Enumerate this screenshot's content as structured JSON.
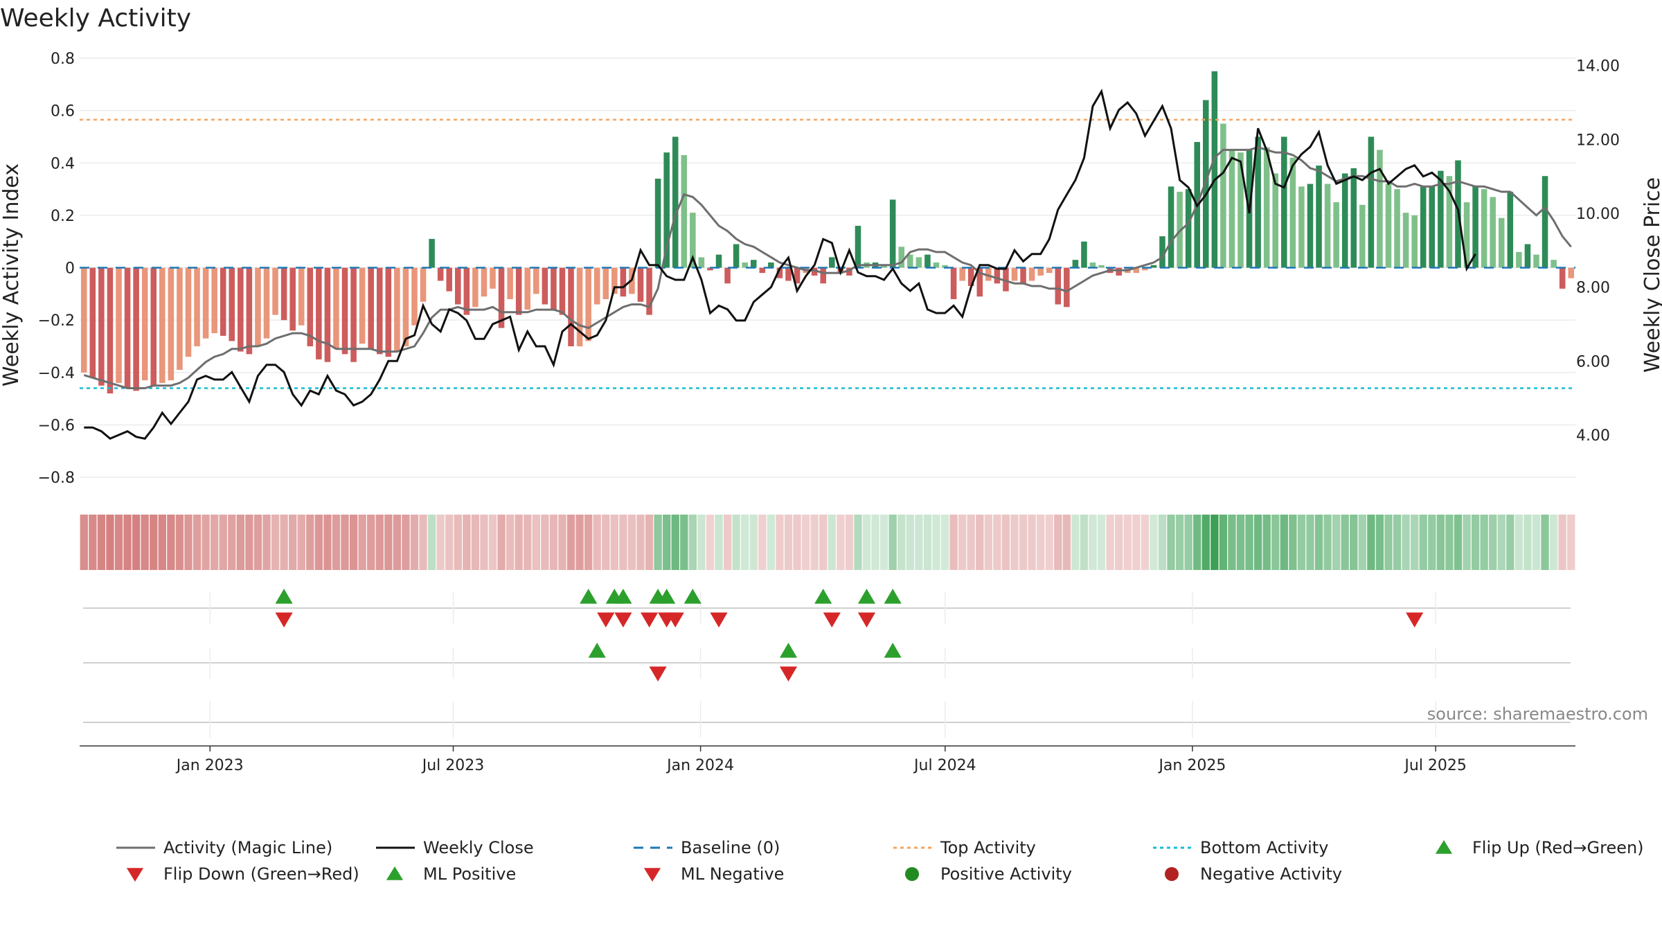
{
  "chart_data": {
    "type": "bar",
    "title": "Weekly Activity",
    "ylabel": "Weekly Activity Index",
    "y2label": "Weekly Close Price",
    "source": "source: sharemaestro.com",
    "ylim": [
      -0.85,
      0.8
    ],
    "y2lim": [
      2.5,
      14.2
    ],
    "yticks": [
      0.8,
      0.6,
      0.4,
      0.2,
      0,
      -0.2,
      -0.4,
      -0.6,
      -0.8
    ],
    "ytick_labels": [
      "0.8",
      "0.6",
      "0.4",
      "0.2",
      "0",
      "−0.2",
      "−0.4",
      "−0.6",
      "−0.8"
    ],
    "y2ticks": [
      14,
      12,
      10,
      8,
      6,
      4
    ],
    "y2tick_labels": [
      "14.00",
      "12.00",
      "10.00",
      "8.00",
      "6.00",
      "4.00"
    ],
    "x_start": "2022-09-26",
    "x_end": "2025-10-13",
    "xticks": [
      {
        "date": "2023-01-01",
        "label": "Jan 2023"
      },
      {
        "date": "2023-07-01",
        "label": "Jul 2023"
      },
      {
        "date": "2024-01-01",
        "label": "Jan 2024"
      },
      {
        "date": "2024-07-01",
        "label": "Jul 2024"
      },
      {
        "date": "2025-01-01",
        "label": "Jan 2025"
      },
      {
        "date": "2025-07-01",
        "label": "Jul 2025"
      }
    ],
    "top_activity": 0.565,
    "bottom_activity": -0.46,
    "activity": [
      -0.4,
      -0.42,
      -0.45,
      -0.48,
      -0.44,
      -0.46,
      -0.47,
      -0.43,
      -0.45,
      -0.44,
      -0.43,
      -0.39,
      -0.34,
      -0.3,
      -0.27,
      -0.25,
      -0.26,
      -0.28,
      -0.32,
      -0.33,
      -0.3,
      -0.27,
      -0.18,
      -0.2,
      -0.24,
      -0.22,
      -0.3,
      -0.35,
      -0.36,
      -0.31,
      -0.33,
      -0.36,
      -0.29,
      -0.31,
      -0.33,
      -0.34,
      -0.32,
      -0.3,
      -0.22,
      -0.13,
      0.11,
      -0.05,
      -0.09,
      -0.14,
      -0.18,
      -0.15,
      -0.11,
      -0.08,
      -0.23,
      -0.12,
      -0.18,
      -0.16,
      -0.1,
      -0.14,
      -0.16,
      -0.18,
      -0.3,
      -0.3,
      -0.28,
      -0.14,
      -0.12,
      -0.1,
      -0.11,
      -0.1,
      -0.13,
      -0.18,
      0.34,
      0.44,
      0.5,
      0.43,
      0.21,
      0.04,
      -0.01,
      0.05,
      -0.06,
      0.09,
      0.02,
      0.03,
      -0.02,
      0.02,
      -0.04,
      -0.05,
      -0.06,
      -0.02,
      -0.03,
      -0.06,
      0.04,
      -0.02,
      -0.03,
      0.16,
      0.02,
      0.02,
      0.01,
      0.26,
      0.08,
      0.05,
      0.04,
      0.05,
      0.02,
      0.01,
      -0.12,
      -0.05,
      -0.07,
      -0.11,
      -0.05,
      -0.06,
      -0.09,
      -0.05,
      -0.06,
      -0.05,
      -0.03,
      -0.02,
      -0.14,
      -0.15,
      0.03,
      0.1,
      0.02,
      0.01,
      -0.02,
      -0.03,
      -0.02,
      -0.02,
      -0.01,
      0.01,
      0.12,
      0.31,
      0.29,
      0.3,
      0.48,
      0.64,
      0.75,
      0.55,
      0.45,
      0.44,
      0.45,
      0.5,
      0.46,
      0.36,
      0.5,
      0.42,
      0.31,
      0.32,
      0.39,
      0.32,
      0.25,
      0.36,
      0.38,
      0.24,
      0.5,
      0.45,
      0.32,
      0.3,
      0.21,
      0.2,
      0.31,
      0.31,
      0.37,
      0.35,
      0.41,
      0.25,
      0.31,
      0.3,
      0.27,
      0.19,
      0.29,
      0.06,
      0.09,
      0.05,
      0.35,
      0.03,
      -0.08,
      -0.04
    ],
    "magic_line": [
      -0.41,
      -0.42,
      -0.43,
      -0.44,
      -0.45,
      -0.46,
      -0.46,
      -0.46,
      -0.45,
      -0.45,
      -0.45,
      -0.44,
      -0.42,
      -0.39,
      -0.36,
      -0.34,
      -0.33,
      -0.31,
      -0.31,
      -0.3,
      -0.3,
      -0.29,
      -0.27,
      -0.26,
      -0.25,
      -0.25,
      -0.26,
      -0.28,
      -0.29,
      -0.31,
      -0.31,
      -0.31,
      -0.31,
      -0.31,
      -0.32,
      -0.32,
      -0.32,
      -0.31,
      -0.3,
      -0.25,
      -0.19,
      -0.16,
      -0.16,
      -0.15,
      -0.16,
      -0.16,
      -0.16,
      -0.15,
      -0.17,
      -0.17,
      -0.17,
      -0.17,
      -0.16,
      -0.16,
      -0.16,
      -0.17,
      -0.2,
      -0.22,
      -0.23,
      -0.21,
      -0.19,
      -0.17,
      -0.15,
      -0.14,
      -0.14,
      -0.15,
      -0.08,
      0.08,
      0.2,
      0.28,
      0.27,
      0.24,
      0.2,
      0.16,
      0.14,
      0.11,
      0.09,
      0.08,
      0.06,
      0.04,
      0.02,
      0.01,
      0.0,
      -0.01,
      -0.01,
      -0.02,
      -0.02,
      -0.02,
      -0.01,
      0.01,
      0.01,
      0.01,
      0.01,
      0.01,
      0.02,
      0.06,
      0.07,
      0.07,
      0.06,
      0.06,
      0.04,
      0.02,
      0.01,
      -0.02,
      -0.03,
      -0.04,
      -0.05,
      -0.06,
      -0.06,
      -0.07,
      -0.07,
      -0.08,
      -0.08,
      -0.09,
      -0.07,
      -0.05,
      -0.03,
      -0.02,
      -0.01,
      -0.01,
      -0.01,
      0.0,
      0.01,
      0.02,
      0.04,
      0.1,
      0.14,
      0.17,
      0.24,
      0.33,
      0.42,
      0.45,
      0.45,
      0.45,
      0.45,
      0.46,
      0.45,
      0.44,
      0.44,
      0.43,
      0.41,
      0.38,
      0.37,
      0.35,
      0.33,
      0.34,
      0.35,
      0.35,
      0.34,
      0.33,
      0.33,
      0.31,
      0.31,
      0.32,
      0.31,
      0.31,
      0.32,
      0.32,
      0.33,
      0.32,
      0.31,
      0.31,
      0.3,
      0.29,
      0.29,
      0.26,
      0.23,
      0.2,
      0.23,
      0.18,
      0.12,
      0.08
    ],
    "weekly_close": [
      4.2,
      4.2,
      4.1,
      3.9,
      4.0,
      4.1,
      3.95,
      3.9,
      4.2,
      4.6,
      4.3,
      4.6,
      4.9,
      5.5,
      5.6,
      5.5,
      5.5,
      5.7,
      5.3,
      4.9,
      5.6,
      5.9,
      5.9,
      5.7,
      5.1,
      4.8,
      5.2,
      5.1,
      5.6,
      5.2,
      5.1,
      4.8,
      4.9,
      5.1,
      5.5,
      6.0,
      6.0,
      6.6,
      6.7,
      7.5,
      7.0,
      6.8,
      7.4,
      7.3,
      7.1,
      6.6,
      6.6,
      7.0,
      7.1,
      7.2,
      6.3,
      6.8,
      6.4,
      6.4,
      5.9,
      6.8,
      7.0,
      6.8,
      6.6,
      6.7,
      7.1,
      8.0,
      8.0,
      8.2,
      9.0,
      8.6,
      8.6,
      8.3,
      8.2,
      8.2,
      8.8,
      8.2,
      7.3,
      7.5,
      7.4,
      7.1,
      7.1,
      7.6,
      7.8,
      8.0,
      8.5,
      8.8,
      7.9,
      8.3,
      8.6,
      9.3,
      9.2,
      8.4,
      9.0,
      8.4,
      8.3,
      8.3,
      8.2,
      8.5,
      8.1,
      7.9,
      8.1,
      7.4,
      7.3,
      7.3,
      7.5,
      7.2,
      8.0,
      8.6,
      8.6,
      8.5,
      8.5,
      9.0,
      8.7,
      8.9,
      8.9,
      9.3,
      10.1,
      10.5,
      10.9,
      11.5,
      12.9,
      13.3,
      12.3,
      12.8,
      13.0,
      12.7,
      12.1,
      12.5,
      12.9,
      12.3,
      10.9,
      10.7,
      10.2,
      10.5,
      10.9,
      11.1,
      11.5,
      11.4,
      10.0,
      12.3,
      11.7,
      10.8,
      10.7,
      11.3,
      11.6,
      11.8,
      12.2,
      11.3,
      10.8,
      10.9,
      11.0,
      10.9,
      11.1,
      11.2,
      10.8,
      11.0,
      11.2,
      11.3,
      11.0,
      11.1,
      10.9,
      10.6,
      10.1,
      8.5,
      8.9
    ],
    "flip_up": [
      23,
      58,
      61,
      62,
      66,
      67,
      70,
      85,
      90,
      93
    ],
    "flip_down": [
      23,
      60,
      62,
      65,
      67,
      68,
      73,
      86,
      90,
      153
    ],
    "ml_positive": [
      59,
      81,
      93
    ],
    "ml_negative": [
      66,
      81
    ],
    "legend": [
      "Activity (Magic Line)",
      "Weekly Close",
      "Baseline (0)",
      "Top Activity",
      "Bottom Activity",
      "Flip Up (Red→Green)",
      "Flip Down (Green→Red)",
      "ML Positive",
      "ML Negative",
      "Positive Activity",
      "Negative Activity"
    ],
    "colors": {
      "pos_dark": "#2e8b57",
      "pos_light": "#7fc08a",
      "neg_dark": "#cd5c5c",
      "neg_light": "#e9967a",
      "magic": "#6e6e6e",
      "close": "#111111",
      "baseline": "#1f77b4",
      "top": "#f4a460",
      "bottom": "#17becf",
      "up": "#2ca02c",
      "down": "#d62728",
      "pos_dot": "#228b22",
      "neg_dot": "#b22222"
    }
  }
}
